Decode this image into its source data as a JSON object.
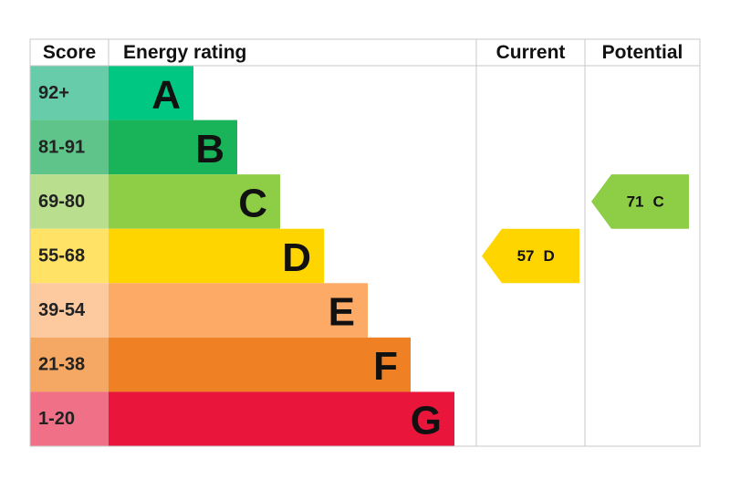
{
  "header": {
    "score": "Score",
    "rating": "Energy rating",
    "current": "Current",
    "potential": "Potential"
  },
  "rows": [
    {
      "band": "92+",
      "letter": "A",
      "color": "#00c781",
      "tint": "#66ccaa"
    },
    {
      "band": "81-91",
      "letter": "B",
      "color": "#19b459",
      "tint": "#5ec48a"
    },
    {
      "band": "69-80",
      "letter": "C",
      "color": "#8dce46",
      "tint": "#b9df8e"
    },
    {
      "band": "55-68",
      "letter": "D",
      "color": "#ffd500",
      "tint": "#ffe266"
    },
    {
      "band": "39-54",
      "letter": "E",
      "color": "#fcaa65",
      "tint": "#fdcaa0"
    },
    {
      "band": "21-38",
      "letter": "F",
      "color": "#ef8023",
      "tint": "#f4a864"
    },
    {
      "band": "1-20",
      "letter": "G",
      "color": "#e9153b",
      "tint": "#f07088"
    }
  ],
  "current": {
    "score": 57,
    "rating": "D"
  },
  "potential": {
    "score": 71,
    "rating": "C"
  }
}
